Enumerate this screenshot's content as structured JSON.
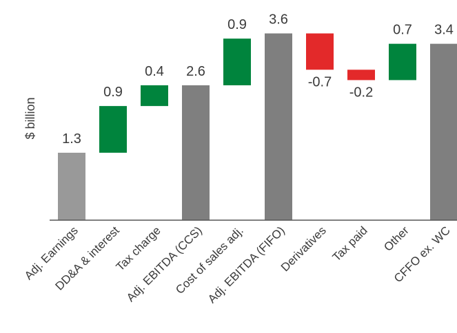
{
  "chart_data": {
    "type": "bar",
    "subtype": "waterfall",
    "ylabel": "$ billion",
    "title": "",
    "xlabel": "",
    "ylim": [
      0,
      3.8
    ],
    "grid": false,
    "legend": "none",
    "categories": [
      "Adj. Earnings",
      "DD&A & interest",
      "Tax charge",
      "Adj. EBITDA (CCS)",
      "Cost of sales adj.",
      "Adj. EBITDA (FIFO)",
      "Derivatives",
      "Tax paid",
      "Other",
      "CFFO ex. WC"
    ],
    "values": [
      1.3,
      0.9,
      0.4,
      2.6,
      0.9,
      3.6,
      -0.7,
      -0.2,
      0.7,
      3.4
    ],
    "value_labels": [
      "1.3",
      "0.9",
      "0.4",
      "2.6",
      "0.9",
      "3.6",
      "-0.7",
      "-0.2",
      "0.7",
      "3.4"
    ],
    "bar_kind": [
      "start",
      "increase",
      "increase",
      "total",
      "increase",
      "total",
      "decrease",
      "decrease",
      "increase",
      "total"
    ],
    "colors": {
      "start": "#999999",
      "increase": "#00843d",
      "decrease": "#e3292a",
      "total": "#7f7f7f",
      "axis": "#555555"
    }
  }
}
